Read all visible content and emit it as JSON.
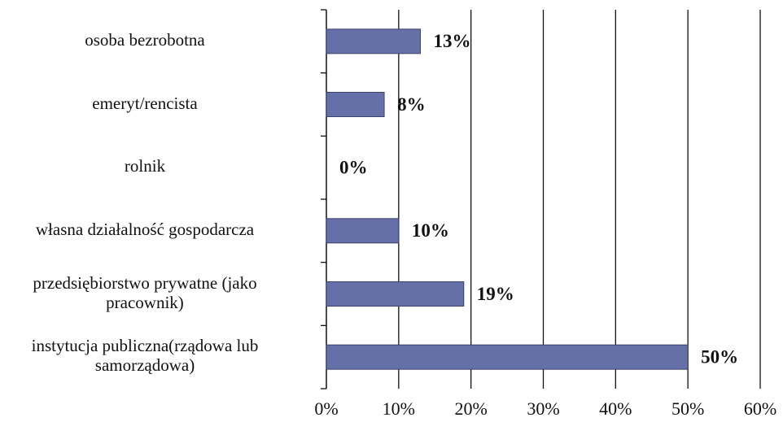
{
  "chart_data": {
    "type": "bar",
    "orientation": "horizontal",
    "categories": [
      "osoba bezrobotna",
      "emeryt/rencista",
      "rolnik",
      "własna działalność gospodarcza",
      "przedsiębiorstwo prywatne (jako\npracownik)",
      "instytucja publiczna(rządowa lub\nsamorządowa)"
    ],
    "values": [
      13,
      8,
      0,
      10,
      19,
      50
    ],
    "value_labels": [
      "13%",
      "8%",
      "0%",
      "10%",
      "19%",
      "50%"
    ],
    "color": "#6670a8",
    "xlim": [
      0,
      60
    ],
    "xticks": [
      {
        "value": 0,
        "label": "0%"
      },
      {
        "value": 10,
        "label": "10%"
      },
      {
        "value": 20,
        "label": "20%"
      },
      {
        "value": 30,
        "label": "30%"
      },
      {
        "value": 40,
        "label": "40%"
      },
      {
        "value": 50,
        "label": "50%"
      },
      {
        "value": 60,
        "label": "60%"
      }
    ],
    "grid": true
  }
}
